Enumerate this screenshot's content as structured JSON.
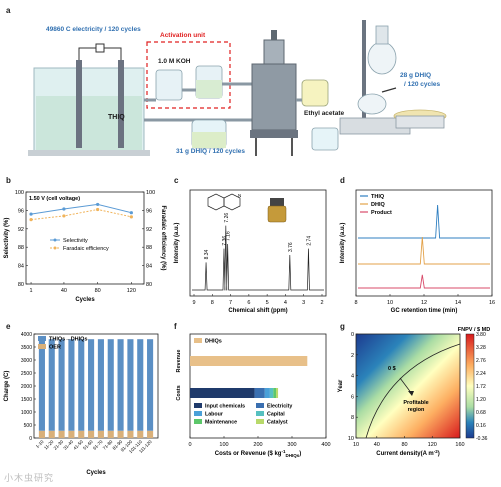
{
  "panel_a": {
    "letter": "a",
    "electricity_label": "49860 C electricity / 120 cycles",
    "activation_label": "Activation unit",
    "koh_label": "1.0 M KOH",
    "thiq_label": "THIQ",
    "ethyl_acetate_label": "Ethyl acetate",
    "dhiq_in_label": "31 g DHIQ / 120 cycles",
    "dhiq_out_line1": "28 g DHIQ",
    "dhiq_out_line2": "/ 120 cycles",
    "colors": {
      "activation": "#e02020",
      "label_blue": "#2f6fb0"
    }
  },
  "chart_data": [
    {
      "panel": "b",
      "type": "line",
      "annotation": "1.50 V (cell voltage)",
      "xlabel": "Cycles",
      "ylabel": "Selectivity (%)",
      "y2label": "Faradaic efficiency (%)",
      "x": [
        1,
        40,
        80,
        120
      ],
      "xticks": [
        "1",
        "40",
        "80",
        "120"
      ],
      "ylim": [
        80,
        100
      ],
      "yticks": [
        "80",
        "84",
        "88",
        "92",
        "96",
        "100"
      ],
      "y2lim": [
        80,
        100
      ],
      "y2ticks": [
        "80",
        "84",
        "88",
        "92",
        "96",
        "100"
      ],
      "series": [
        {
          "name": "Selectivity",
          "color": "#5b9bd5",
          "values": [
            95.2,
            96.3,
            97.3,
            95.5
          ]
        },
        {
          "name": "Faradaic efficiency",
          "color": "#f0b35a",
          "values": [
            94.0,
            94.8,
            96.2,
            94.6
          ]
        }
      ],
      "legend_position": "middle-center"
    },
    {
      "panel": "c",
      "type": "line",
      "title": "",
      "xlabel": "Chemical shift (ppm)",
      "ylabel": "Intensity (a.u.)",
      "xticks": [
        "9",
        "8",
        "7",
        "6",
        "5",
        "4",
        "3",
        "2"
      ],
      "xlim": [
        9,
        2
      ],
      "peaks": [
        {
          "ppm": 8.34,
          "label": "8.34",
          "height": 0.3
        },
        {
          "ppm": 7.36,
          "label": "7.36",
          "height": 0.45
        },
        {
          "ppm": 7.16,
          "label": "7.16",
          "height": 0.5
        },
        {
          "ppm": 7.26,
          "label": "7.26",
          "height": 0.7
        },
        {
          "ppm": 3.76,
          "label": "3.76",
          "height": 0.38
        },
        {
          "ppm": 2.74,
          "label": "2.74",
          "height": 0.45
        }
      ]
    },
    {
      "panel": "d",
      "type": "line",
      "xlabel": "GC retention time (min)",
      "ylabel": "Intensity (a.u.)",
      "xlim": [
        8,
        16
      ],
      "xticks": [
        "8",
        "10",
        "12",
        "14",
        "16"
      ],
      "series": [
        {
          "name": "THIQ",
          "color": "#2f7fc1",
          "peak_at": 12.8,
          "height": 0.55
        },
        {
          "name": "DHIQ",
          "color": "#e3a24a",
          "peak_at": 11.9,
          "height": 0.45
        },
        {
          "name": "Product",
          "color": "#d84b6a",
          "peak_at": 11.9,
          "height": 0.22
        }
      ],
      "legend_position": "top-left"
    },
    {
      "panel": "e",
      "type": "bar",
      "xlabel": "Cycles",
      "ylabel": "Charge (C)",
      "ylim": [
        0,
        4000
      ],
      "yticks": [
        "0",
        "500",
        "1000",
        "1500",
        "2000",
        "2500",
        "3000",
        "3500",
        "4000"
      ],
      "categories": [
        "1-10",
        "11-20",
        "21-30",
        "31-40",
        "41-50",
        "51-60",
        "61-70",
        "71-80",
        "81-90",
        "91-100",
        "101-110",
        "111-120"
      ],
      "series": [
        {
          "name": "THIQs→DHIQs",
          "color": "#5b8fc4",
          "values": [
            3800,
            3800,
            3800,
            3800,
            3800,
            3800,
            3800,
            3800,
            3800,
            3800,
            3800,
            3800
          ]
        },
        {
          "name": "OER",
          "color": "#d9b07a",
          "values": [
            280,
            280,
            280,
            280,
            280,
            280,
            280,
            280,
            280,
            280,
            280,
            280
          ]
        }
      ],
      "legend_position": "top-left"
    },
    {
      "panel": "f",
      "type": "bar",
      "orientation": "horizontal",
      "xlabel_pre": "Costs or Revenue ($ kg",
      "xlabel_sup": "-1",
      "xlabel_sub": "DHIQs",
      "xlabel_post": ")",
      "xlim": [
        0,
        400
      ],
      "xticks": [
        "0",
        "100",
        "200",
        "300",
        "400"
      ],
      "categories": [
        "Revenue",
        "Costs"
      ],
      "revenue": {
        "name": "DHIQs",
        "color": "#e8c089",
        "value": 345
      },
      "costs": [
        {
          "name": "Input chemicals",
          "color": "#1f3a6b",
          "value": 190
        },
        {
          "name": "Electricity",
          "color": "#3a6fb0",
          "value": 30
        },
        {
          "name": "Labour",
          "color": "#4aa0d8",
          "value": 15
        },
        {
          "name": "Capital",
          "color": "#56c0c0",
          "value": 10
        },
        {
          "name": "Maintenance",
          "color": "#5cc76a",
          "value": 8
        },
        {
          "name": "Catalyst",
          "color": "#b8d96a",
          "value": 6
        }
      ]
    },
    {
      "panel": "g",
      "type": "heatmap",
      "xlabel_pre": "Current density(A m",
      "xlabel_sup": "-2",
      "xlabel_post": ")",
      "ylabel": "Year",
      "xlim": [
        10,
        160
      ],
      "xticks": [
        "10",
        "40",
        "80",
        "120",
        "160"
      ],
      "ylim": [
        0,
        10
      ],
      "yticks": [
        "0",
        "2",
        "4",
        "6",
        "8",
        "10"
      ],
      "colorbar_title": "FNPV / $ MD",
      "colorbar_ticks": [
        "3.80",
        "3.28",
        "2.76",
        "2.24",
        "1.72",
        "1.20",
        "0.68",
        "0.16",
        "-0.36"
      ],
      "contour_label": "0 $",
      "region_label_line1": "Profitable",
      "region_label_line2": "region"
    }
  ],
  "watermark": "小木虫研究"
}
